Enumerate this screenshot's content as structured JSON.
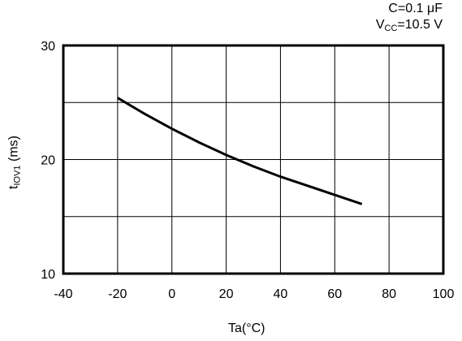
{
  "chart_data": {
    "type": "line",
    "title": "",
    "conditions": {
      "c_prefix": "C=0.1 ",
      "c_unit": "μF",
      "v_main": "V",
      "v_sub": "CC",
      "v_value": "=10.5 V"
    },
    "xlabel": "Ta(°C)",
    "ylabel_main": "t",
    "ylabel_sub": "IOV1",
    "ylabel_unit": " (ms)",
    "xlim": [
      -40,
      100
    ],
    "ylim": [
      10,
      30
    ],
    "x_ticks": [
      -40,
      -20,
      0,
      20,
      40,
      60,
      80,
      100
    ],
    "y_ticks": [
      10,
      20,
      30
    ],
    "y_grid": [
      10,
      15,
      20,
      25,
      30
    ],
    "grid": true,
    "series": [
      {
        "x": [
          -20,
          -10,
          0,
          10,
          20,
          30,
          40,
          50,
          60,
          70
        ],
        "y": [
          25.4,
          24.0,
          22.7,
          21.5,
          20.4,
          19.4,
          18.5,
          17.7,
          16.9,
          16.1
        ]
      }
    ]
  }
}
